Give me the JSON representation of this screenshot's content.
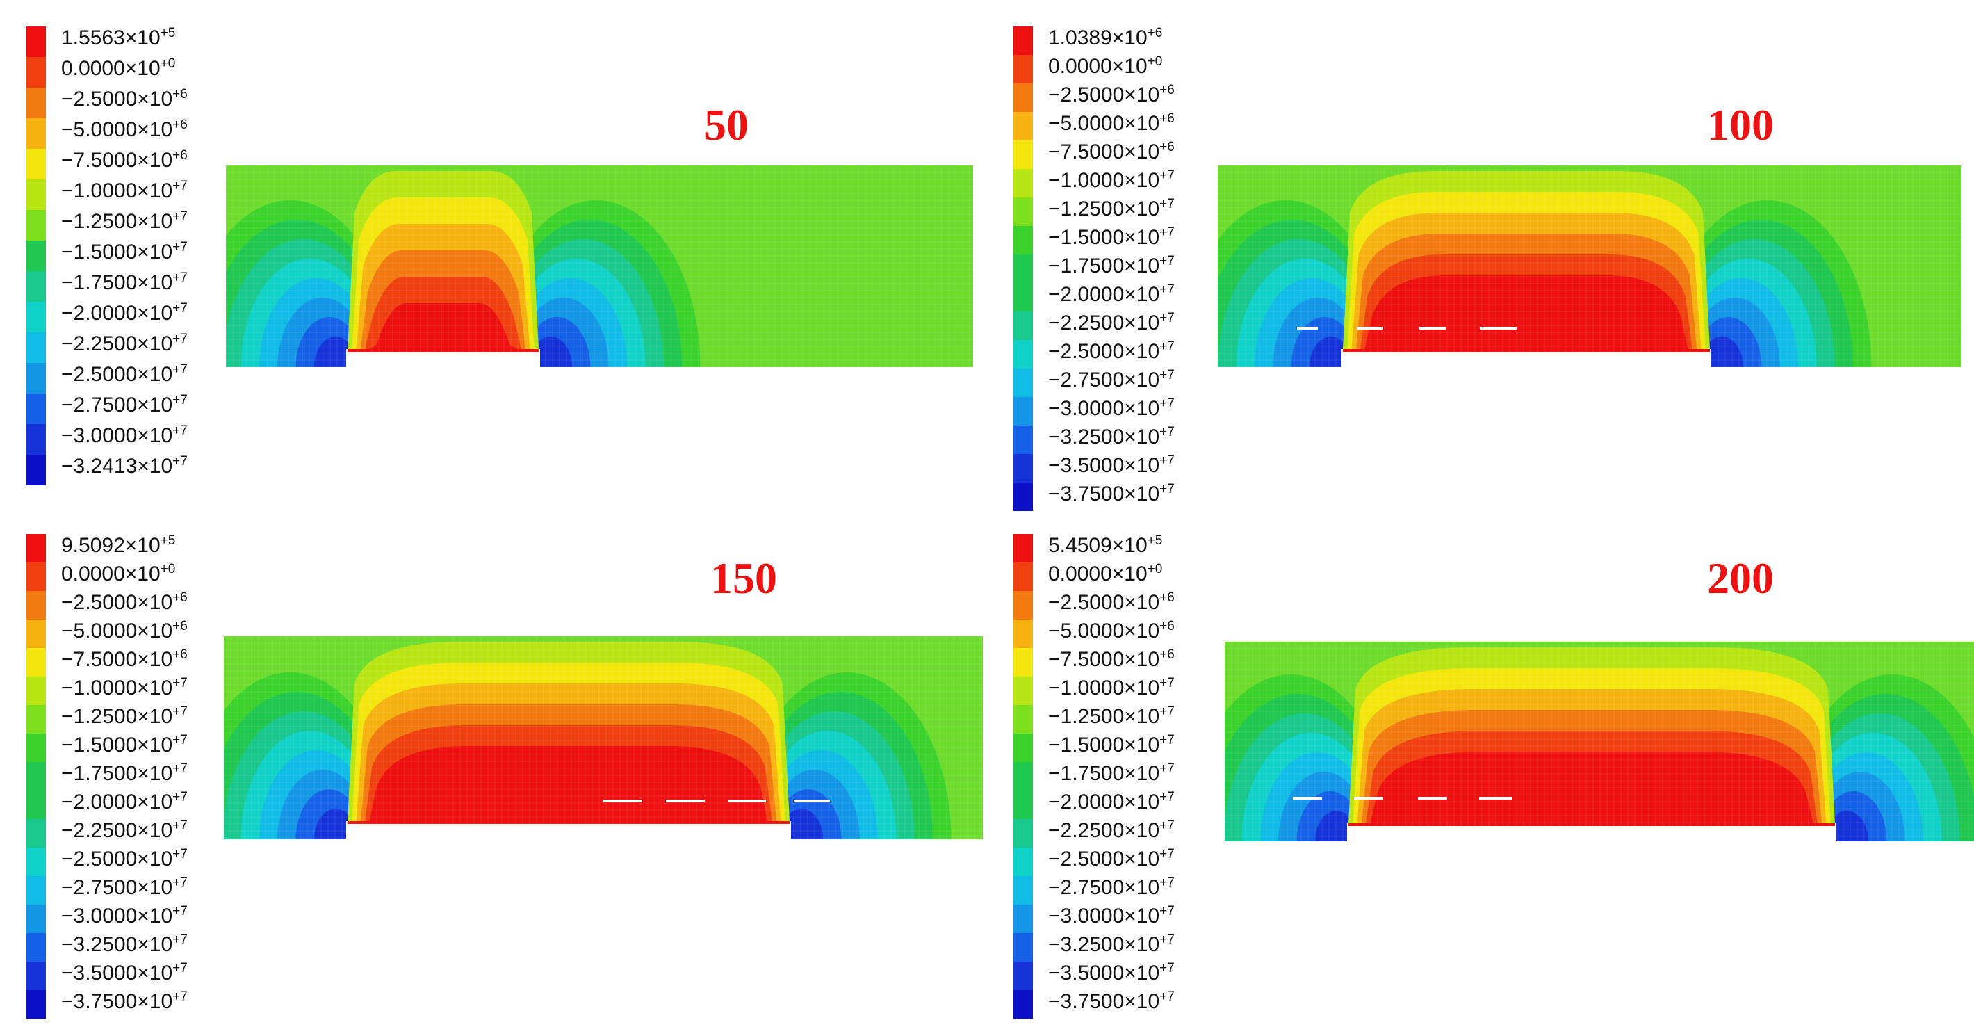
{
  "panels": [
    {
      "title": "50",
      "legend_max": "1.5563×10",
      "legend_max_exp": "+5",
      "legend": [
        [
          "0.0000×10",
          "+0"
        ],
        [
          "−2.5000×10",
          "+6"
        ],
        [
          "−5.0000×10",
          "+6"
        ],
        [
          "−7.5000×10",
          "+6"
        ],
        [
          "−1.0000×10",
          "+7"
        ],
        [
          "−1.2500×10",
          "+7"
        ],
        [
          "−1.5000×10",
          "+7"
        ],
        [
          "−1.7500×10",
          "+7"
        ],
        [
          "−2.0000×10",
          "+7"
        ],
        [
          "−2.2500×10",
          "+7"
        ],
        [
          "−2.5000×10",
          "+7"
        ],
        [
          "−2.7500×10",
          "+7"
        ],
        [
          "−3.0000×10",
          "+7"
        ],
        [
          "−3.2413×10",
          "+7"
        ]
      ],
      "cracks": 0
    },
    {
      "title": "100",
      "legend_max": "1.0389×10",
      "legend_max_exp": "+6",
      "legend": [
        [
          "0.0000×10",
          "+0"
        ],
        [
          "−2.5000×10",
          "+6"
        ],
        [
          "−5.0000×10",
          "+6"
        ],
        [
          "−7.5000×10",
          "+6"
        ],
        [
          "−1.0000×10",
          "+7"
        ],
        [
          "−1.2500×10",
          "+7"
        ],
        [
          "−1.5000×10",
          "+7"
        ],
        [
          "−1.7500×10",
          "+7"
        ],
        [
          "−2.0000×10",
          "+7"
        ],
        [
          "−2.2500×10",
          "+7"
        ],
        [
          "−2.5000×10",
          "+7"
        ],
        [
          "−2.7500×10",
          "+7"
        ],
        [
          "−3.0000×10",
          "+7"
        ],
        [
          "−3.2500×10",
          "+7"
        ],
        [
          "−3.5000×10",
          "+7"
        ],
        [
          "−3.7500×10",
          "+7"
        ]
      ],
      "cracks": 4
    },
    {
      "title": "150",
      "legend_max": "9.5092×10",
      "legend_max_exp": "+5",
      "legend": [
        [
          "0.0000×10",
          "+0"
        ],
        [
          "−2.5000×10",
          "+6"
        ],
        [
          "−5.0000×10",
          "+6"
        ],
        [
          "−7.5000×10",
          "+6"
        ],
        [
          "−1.0000×10",
          "+7"
        ],
        [
          "−1.2500×10",
          "+7"
        ],
        [
          "−1.5000×10",
          "+7"
        ],
        [
          "−1.7500×10",
          "+7"
        ],
        [
          "−2.0000×10",
          "+7"
        ],
        [
          "−2.2500×10",
          "+7"
        ],
        [
          "−2.5000×10",
          "+7"
        ],
        [
          "−2.7500×10",
          "+7"
        ],
        [
          "−3.0000×10",
          "+7"
        ],
        [
          "−3.2500×10",
          "+7"
        ],
        [
          "−3.5000×10",
          "+7"
        ],
        [
          "−3.7500×10",
          "+7"
        ]
      ],
      "cracks": 4
    },
    {
      "title": "200",
      "legend_max": "5.4509×10",
      "legend_max_exp": "+5",
      "legend": [
        [
          "0.0000×10",
          "+0"
        ],
        [
          "−2.5000×10",
          "+6"
        ],
        [
          "−5.0000×10",
          "+6"
        ],
        [
          "−7.5000×10",
          "+6"
        ],
        [
          "−1.0000×10",
          "+7"
        ],
        [
          "−1.2500×10",
          "+7"
        ],
        [
          "−1.5000×10",
          "+7"
        ],
        [
          "−1.7500×10",
          "+7"
        ],
        [
          "−2.0000×10",
          "+7"
        ],
        [
          "−2.2500×10",
          "+7"
        ],
        [
          "−2.5000×10",
          "+7"
        ],
        [
          "−2.7500×10",
          "+7"
        ],
        [
          "−3.0000×10",
          "+7"
        ],
        [
          "−3.2500×10",
          "+7"
        ],
        [
          "−3.5000×10",
          "+7"
        ],
        [
          "−3.7500×10",
          "+7"
        ]
      ],
      "cracks": 4
    }
  ],
  "colors": {
    "scale": [
      "#ee1010",
      "#f04010",
      "#f27a10",
      "#f5b210",
      "#f2e60c",
      "#b8e614",
      "#7ee01c",
      "#3cd22c",
      "#20c850",
      "#18c88c",
      "#10d2c8",
      "#10bce6",
      "#1496e6",
      "#1460e6",
      "#1432d8",
      "#0c10c8"
    ],
    "field_base": "#6edc2c",
    "crack": "#ffffff"
  }
}
